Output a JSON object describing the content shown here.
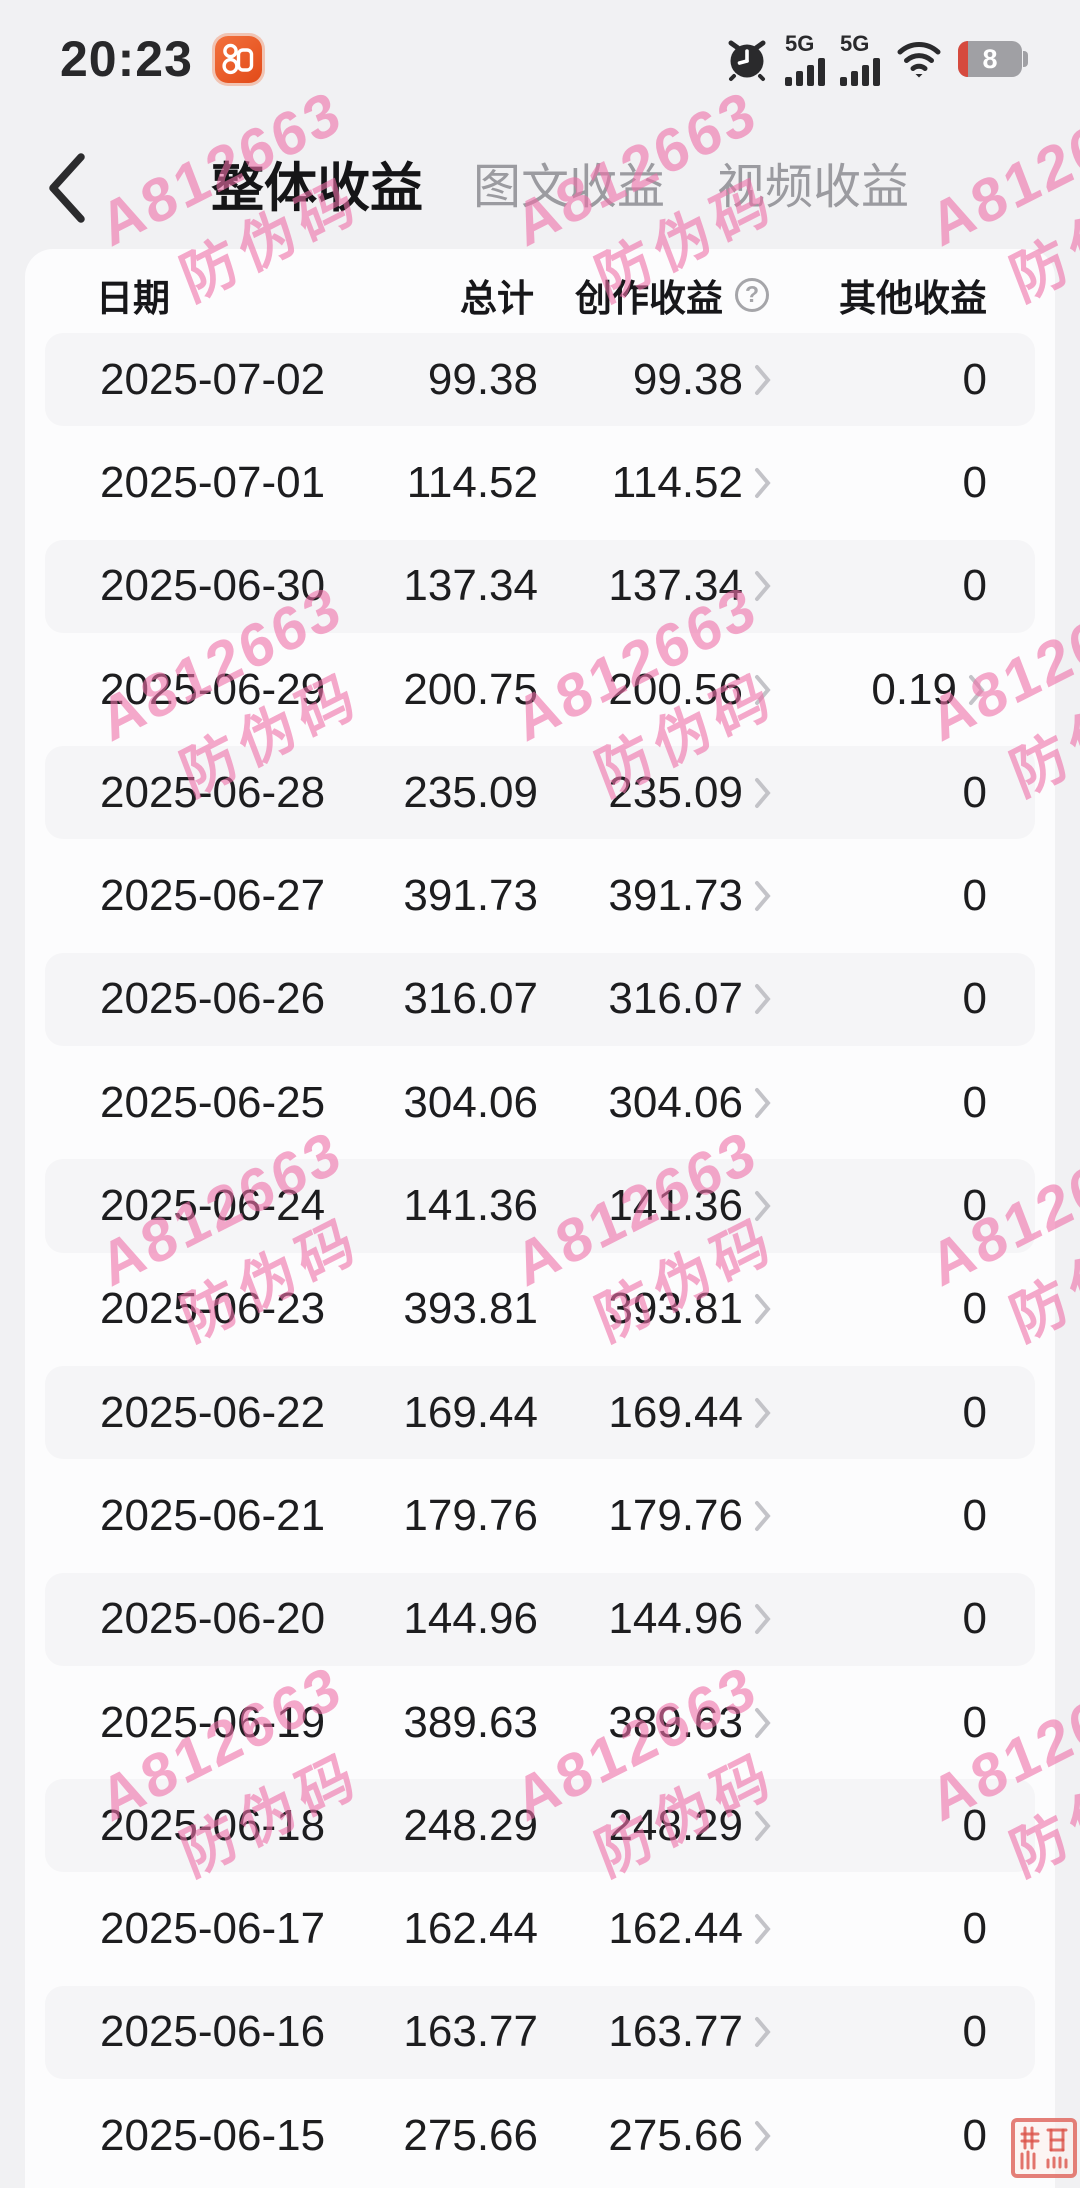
{
  "status_bar": {
    "time": "20:23",
    "network": [
      "5G",
      "5G"
    ],
    "battery_level": "8"
  },
  "nav": {
    "tabs": [
      {
        "label": "整体收益",
        "active": true
      },
      {
        "label": "图文收益",
        "active": false
      },
      {
        "label": "视频收益",
        "active": false
      }
    ]
  },
  "table": {
    "columns": [
      "日期",
      "总计",
      "创作收益",
      "其他收益"
    ],
    "help_icon": "?",
    "rows": [
      {
        "date": "2025-07-02",
        "total": "99.38",
        "creation": "99.38",
        "creation_arrow": true,
        "other": "0",
        "other_arrow": false
      },
      {
        "date": "2025-07-01",
        "total": "114.52",
        "creation": "114.52",
        "creation_arrow": true,
        "other": "0",
        "other_arrow": false
      },
      {
        "date": "2025-06-30",
        "total": "137.34",
        "creation": "137.34",
        "creation_arrow": true,
        "other": "0",
        "other_arrow": false
      },
      {
        "date": "2025-06-29",
        "total": "200.75",
        "creation": "200.56",
        "creation_arrow": true,
        "other": "0.19",
        "other_arrow": true
      },
      {
        "date": "2025-06-28",
        "total": "235.09",
        "creation": "235.09",
        "creation_arrow": true,
        "other": "0",
        "other_arrow": false
      },
      {
        "date": "2025-06-27",
        "total": "391.73",
        "creation": "391.73",
        "creation_arrow": true,
        "other": "0",
        "other_arrow": false
      },
      {
        "date": "2025-06-26",
        "total": "316.07",
        "creation": "316.07",
        "creation_arrow": true,
        "other": "0",
        "other_arrow": false
      },
      {
        "date": "2025-06-25",
        "total": "304.06",
        "creation": "304.06",
        "creation_arrow": true,
        "other": "0",
        "other_arrow": false
      },
      {
        "date": "2025-06-24",
        "total": "141.36",
        "creation": "141.36",
        "creation_arrow": true,
        "other": "0",
        "other_arrow": false
      },
      {
        "date": "2025-06-23",
        "total": "393.81",
        "creation": "393.81",
        "creation_arrow": true,
        "other": "0",
        "other_arrow": false
      },
      {
        "date": "2025-06-22",
        "total": "169.44",
        "creation": "169.44",
        "creation_arrow": true,
        "other": "0",
        "other_arrow": false
      },
      {
        "date": "2025-06-21",
        "total": "179.76",
        "creation": "179.76",
        "creation_arrow": true,
        "other": "0",
        "other_arrow": false
      },
      {
        "date": "2025-06-20",
        "total": "144.96",
        "creation": "144.96",
        "creation_arrow": true,
        "other": "0",
        "other_arrow": false
      },
      {
        "date": "2025-06-19",
        "total": "389.63",
        "creation": "389.63",
        "creation_arrow": true,
        "other": "0",
        "other_arrow": false
      },
      {
        "date": "2025-06-18",
        "total": "248.29",
        "creation": "248.29",
        "creation_arrow": true,
        "other": "0",
        "other_arrow": false
      },
      {
        "date": "2025-06-17",
        "total": "162.44",
        "creation": "162.44",
        "creation_arrow": true,
        "other": "0",
        "other_arrow": false
      },
      {
        "date": "2025-06-16",
        "total": "163.77",
        "creation": "163.77",
        "creation_arrow": true,
        "other": "0",
        "other_arrow": false
      },
      {
        "date": "2025-06-15",
        "total": "275.66",
        "creation": "275.66",
        "creation_arrow": true,
        "other": "0",
        "other_arrow": false
      }
    ]
  },
  "watermark": {
    "line1": "A812663",
    "line2": "防伪码",
    "color": "#ee70a8"
  },
  "colors": {
    "page_bg": "#f1f1f3",
    "card_bg": "#fcfcfd",
    "shaded_row_bg": "#f5f5f7",
    "accent_orange": "#e85a2a",
    "battery_red": "#d64a3e",
    "seal_red": "#db5248"
  }
}
